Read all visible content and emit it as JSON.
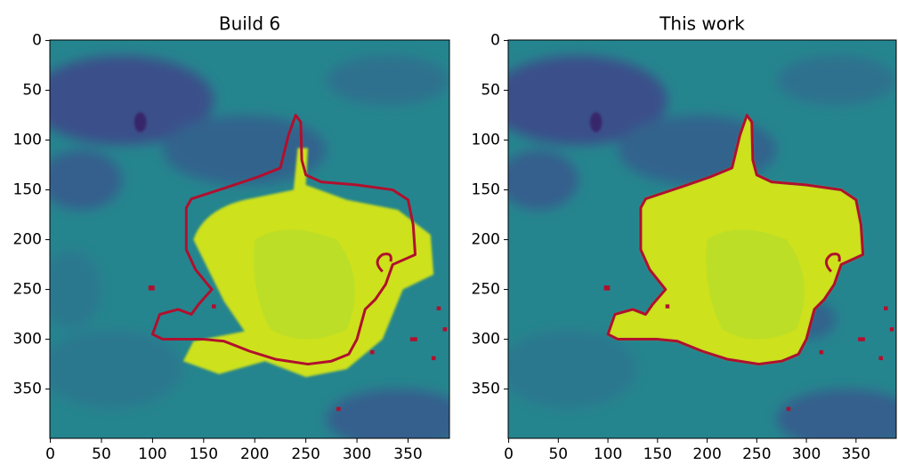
{
  "chart_data": [
    {
      "type": "image",
      "title": "Build 6",
      "xlim": [
        -0.5,
        390.5
      ],
      "ylim": [
        399.5,
        -0.5
      ],
      "xticks": [
        0,
        50,
        100,
        150,
        200,
        250,
        300,
        350
      ],
      "yticks": [
        0,
        50,
        100,
        150,
        200,
        250,
        300,
        350
      ]
    },
    {
      "type": "image",
      "title": "This work",
      "xlim": [
        -0.5,
        390.5
      ],
      "ylim": [
        399.5,
        -0.5
      ],
      "xticks": [
        0,
        50,
        100,
        150,
        200,
        250,
        300,
        350
      ],
      "yticks": [
        0,
        50,
        100,
        150,
        200,
        250,
        300,
        350
      ]
    }
  ]
}
